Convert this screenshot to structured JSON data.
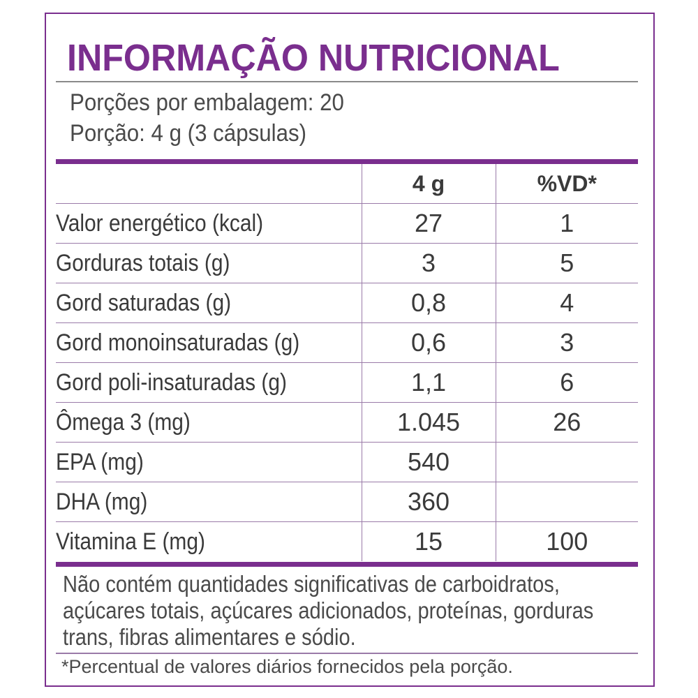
{
  "label": {
    "title": "INFORMAÇÃO NUTRICIONAL",
    "servings_per_package": "Porções por embalagem: 20",
    "serving_size": "Porção: 4 g (3 cápsulas)"
  },
  "table": {
    "headers": {
      "name": "",
      "qty": "4 g",
      "vd": "%VD*"
    },
    "rows": [
      {
        "name": "Valor energético (kcal)",
        "qty": "27",
        "vd": "1",
        "indent": 0
      },
      {
        "name": "Gorduras totais (g)",
        "qty": "3",
        "vd": "5",
        "indent": 0
      },
      {
        "name": "Gord saturadas (g)",
        "qty": "0,8",
        "vd": "4",
        "indent": 1
      },
      {
        "name": "Gord monoinsaturadas (g)",
        "qty": "0,6",
        "vd": "3",
        "indent": 1
      },
      {
        "name": "Gord poli-insaturadas (g)",
        "qty": "1,1",
        "vd": "6",
        "indent": 1
      },
      {
        "name": "Ômega 3 (mg)",
        "qty": "1.045",
        "vd": "26",
        "indent": 2
      },
      {
        "name": "EPA (mg)",
        "qty": "540",
        "vd": "",
        "indent": 3
      },
      {
        "name": "DHA (mg)",
        "qty": "360",
        "vd": "",
        "indent": 3
      },
      {
        "name": "Vitamina E (mg)",
        "qty": "15",
        "vd": "100",
        "indent": 0
      }
    ]
  },
  "note": "Não contém quantidades significativas de carboidratos, açúcares totais, açúcares adicionados, proteínas, gorduras trans, fibras alimentares e sódio.",
  "footnote": "*Percentual de valores diários fornecidos pela porção.",
  "colors": {
    "accent": "#7a2e8e",
    "text": "#3a3a3a"
  }
}
